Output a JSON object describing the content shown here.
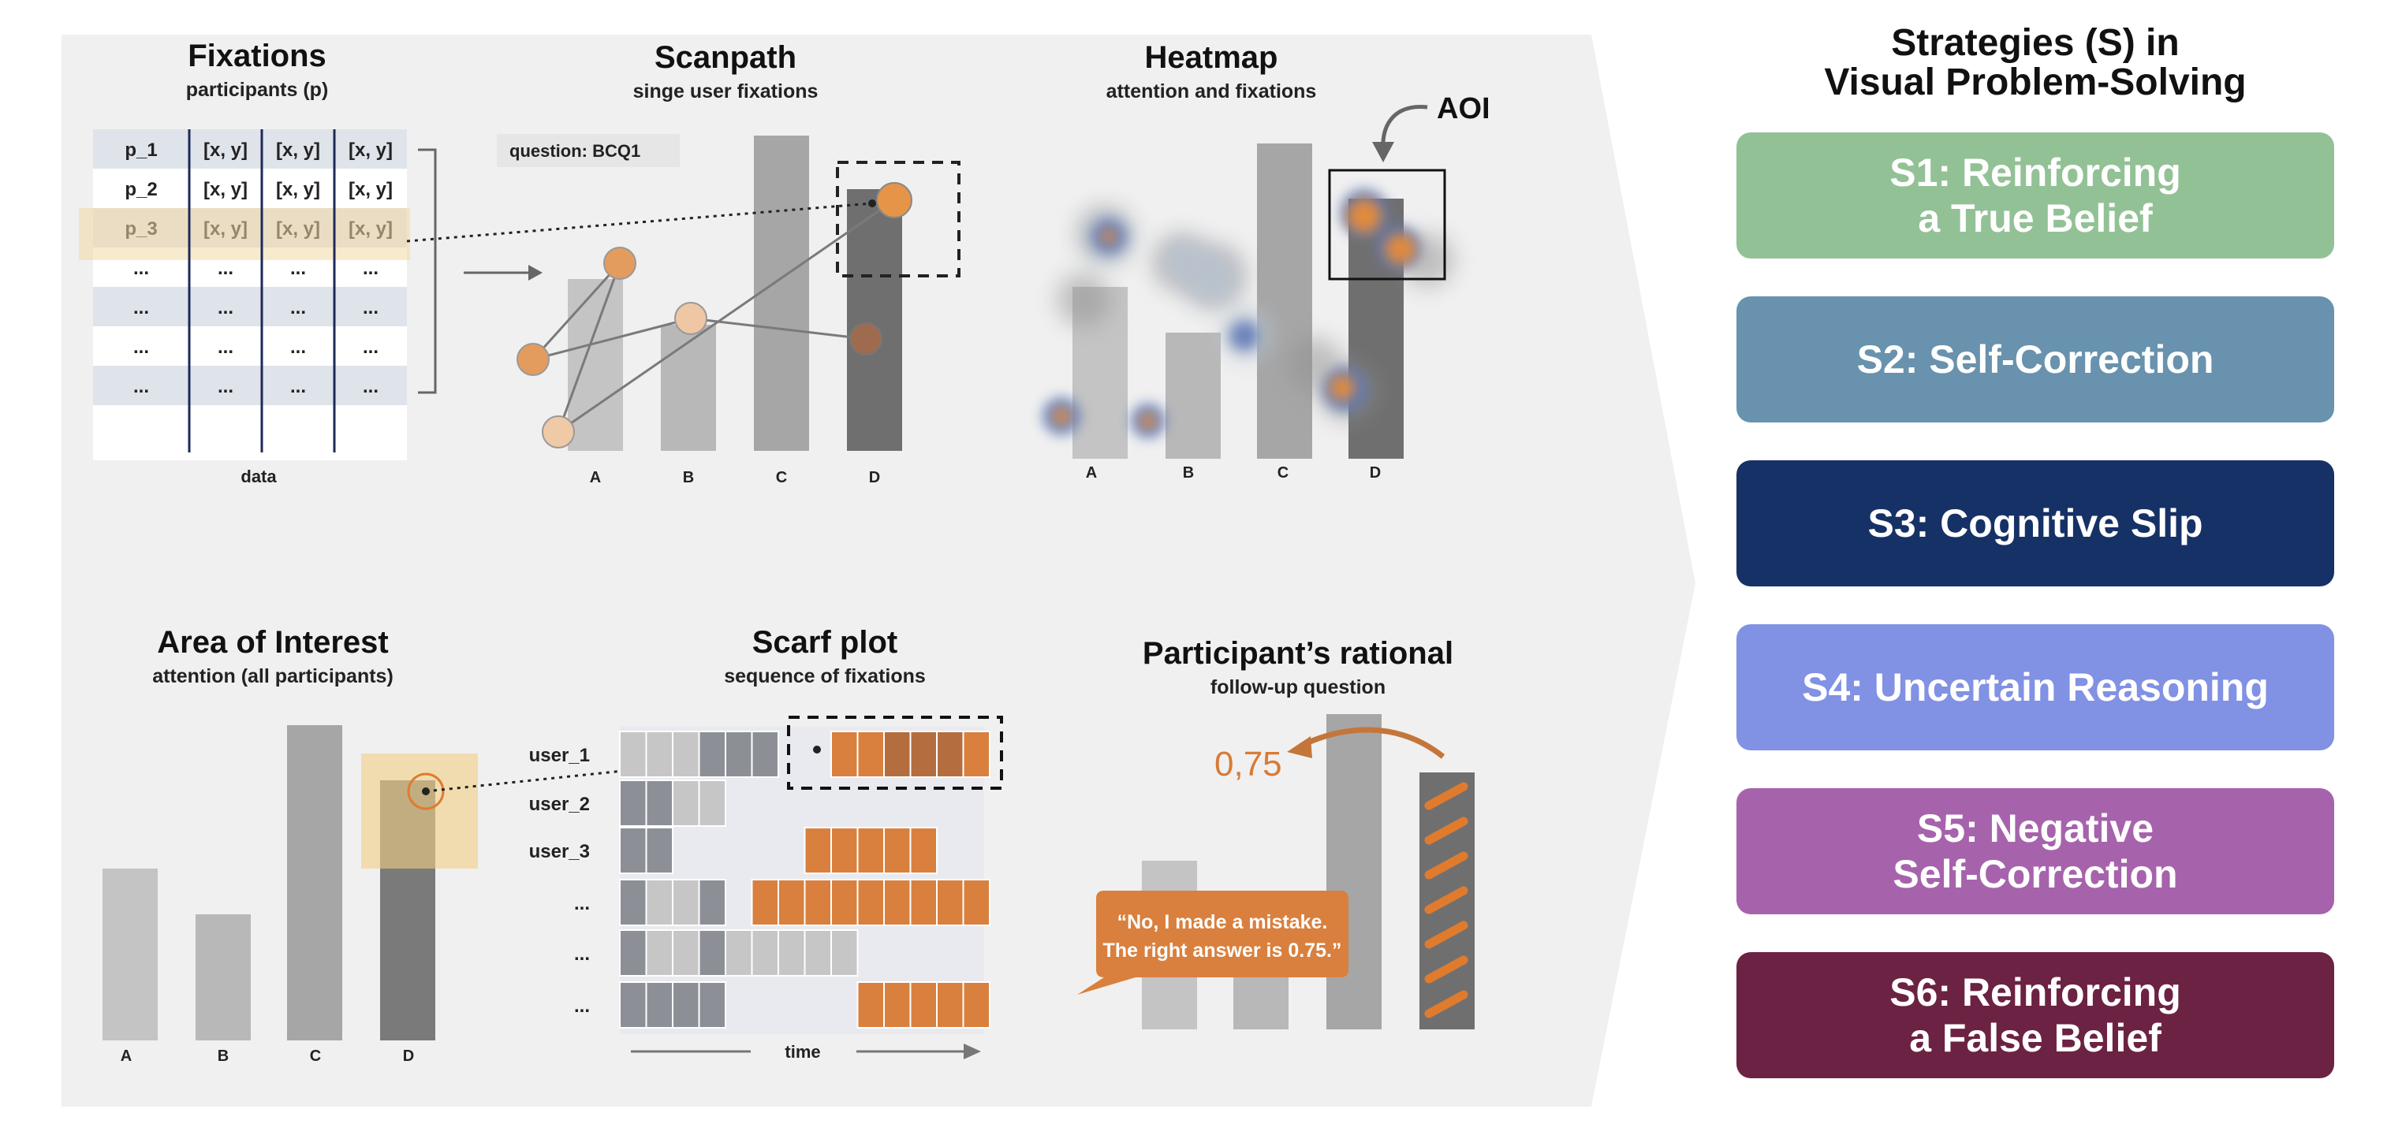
{
  "panels": {
    "fixations": {
      "title": "Fixations",
      "subtitle": "participants (p)",
      "rows": [
        {
          "id": "p_1",
          "cells": [
            "[x, y]",
            "[x, y]",
            "[x, y]"
          ]
        },
        {
          "id": "p_2",
          "cells": [
            "[x, y]",
            "[x, y]",
            "[x, y]"
          ]
        },
        {
          "id": "p_3",
          "cells": [
            "[x, y]",
            "[x, y]",
            "[x, y]"
          ]
        },
        {
          "id": "...",
          "cells": [
            "...",
            "...",
            "..."
          ]
        },
        {
          "id": "...",
          "cells": [
            "...",
            "...",
            "..."
          ]
        },
        {
          "id": "...",
          "cells": [
            "...",
            "...",
            "..."
          ]
        },
        {
          "id": "...",
          "cells": [
            "...",
            "...",
            "..."
          ]
        }
      ],
      "footer": "data"
    },
    "scanpath": {
      "title": "Scanpath",
      "subtitle": "singe user fixations",
      "question": "question: BCQ1",
      "categories": [
        "A",
        "B",
        "C",
        "D"
      ]
    },
    "heatmap": {
      "title": "Heatmap",
      "subtitle": "attention and fixations",
      "aoi_label": "AOI",
      "categories": [
        "A",
        "B",
        "C",
        "D"
      ]
    },
    "aoi": {
      "title": "Area of Interest",
      "subtitle": "attention (all participants)",
      "categories": [
        "A",
        "B",
        "C",
        "D"
      ]
    },
    "scarf": {
      "title": "Scarf plot",
      "subtitle": "sequence of fixations",
      "rows": [
        "user_1",
        "user_2",
        "user_3",
        "...",
        "...",
        "..."
      ],
      "time_label": "time"
    },
    "rational": {
      "title": "Participant’s rational",
      "subtitle": "follow-up question",
      "value": "0,75",
      "quote_line1": "“No, I made a mistake.",
      "quote_line2": "The right answer is 0.75.”"
    }
  },
  "strategies": {
    "title_line1": "Strategies (S) in",
    "title_line2": "Visual Problem-Solving",
    "items": [
      {
        "code": "S1:",
        "label": "Reinforcing\na True Belief",
        "color": "#93c196"
      },
      {
        "code": "S2:",
        "label": "Self-Correction",
        "color": "#6892ad"
      },
      {
        "code": "S3:",
        "label": "Cognitive Slip",
        "color": "#163166"
      },
      {
        "code": "S4:",
        "label": "Uncertain Reasoning",
        "color": "#8191e3"
      },
      {
        "code": "S5:",
        "label": "Negative\nSelf-Correction",
        "color": "#a663ac"
      },
      {
        "code": "S6:",
        "label": "Reinforcing\na False Belief",
        "color": "#6c2242"
      }
    ]
  }
}
